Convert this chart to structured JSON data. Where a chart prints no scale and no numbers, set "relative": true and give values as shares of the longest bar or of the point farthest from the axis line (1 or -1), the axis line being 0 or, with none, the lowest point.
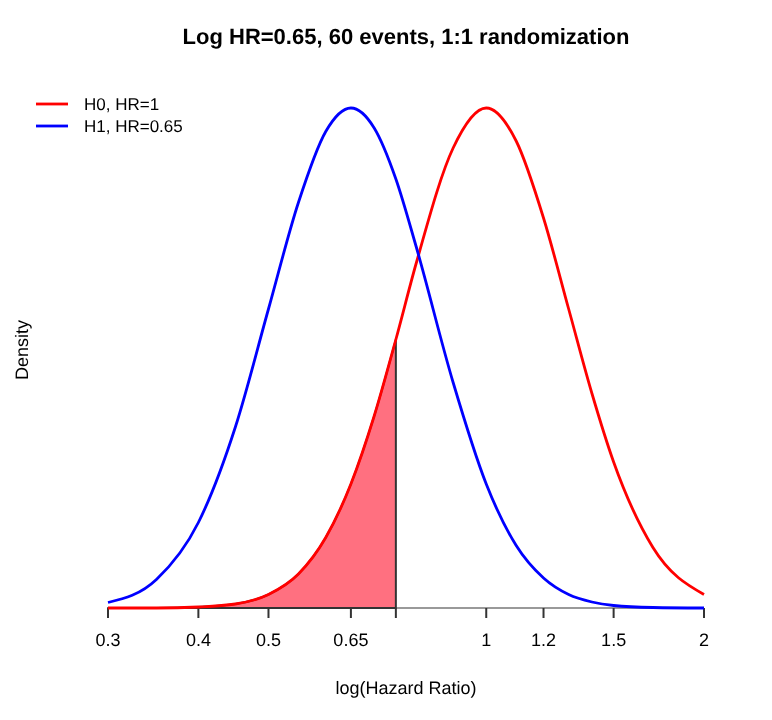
{
  "chart_data": {
    "type": "line",
    "title": "Log HR=0.65, 60 events, 1:1 randomization",
    "xlabel": "log(Hazard Ratio)",
    "ylabel": "Density",
    "relative": true,
    "log": "x",
    "xlim": [
      0.3,
      2
    ],
    "xticks": [
      0.3,
      0.4,
      0.5,
      0.65,
      {
        "value": 0.75,
        "label": null
      },
      1,
      1.2,
      1.5,
      2
    ],
    "legend": "top left",
    "grid": false,
    "series": [
      {
        "type": "area",
        "color": "#ff7080",
        "x": [
          0.3,
          0.35,
          0.4,
          0.45,
          0.5,
          0.55,
          0.6,
          0.65,
          0.7,
          0.75
        ],
        "values": [
          0,
          0,
          0.002,
          0.008,
          0.027,
          0.068,
          0.141,
          0.248,
          0.384,
          0.537
        ]
      },
      {
        "name": "H0, HR=1",
        "color": "#ff0000",
        "x": [
          0.3,
          0.35,
          0.4,
          0.45,
          0.5,
          0.55,
          0.6,
          0.65,
          0.7,
          0.75,
          0.8,
          0.9,
          1,
          1.1,
          1.2,
          1.3,
          1.4,
          1.5,
          1.7,
          2
        ],
        "values": [
          0,
          0,
          0.002,
          0.008,
          0.027,
          0.068,
          0.141,
          0.248,
          0.384,
          0.537,
          0.689,
          0.92,
          1,
          0.934,
          0.78,
          0.598,
          0.429,
          0.292,
          0.121,
          0.027
        ]
      },
      {
        "name": "H1, HR=0.65",
        "color": "#0000ff",
        "x": [
          0.3,
          0.35,
          0.4,
          0.45,
          0.5,
          0.55,
          0.6,
          0.65,
          0.7,
          0.75,
          0.8,
          0.9,
          1,
          1.1,
          1.2,
          1.3,
          1.4,
          1.5,
          1.7,
          2
        ],
        "values": [
          0.011,
          0.057,
          0.171,
          0.362,
          0.598,
          0.811,
          0.953,
          1,
          0.96,
          0.858,
          0.723,
          0.451,
          0.248,
          0.125,
          0.06,
          0.027,
          0.012,
          0.005,
          0.001,
          0
        ]
      }
    ]
  }
}
